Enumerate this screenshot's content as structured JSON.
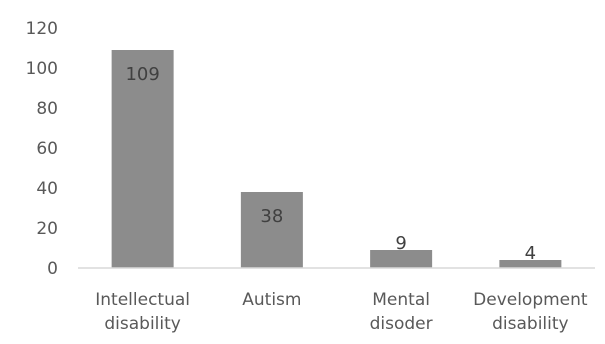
{
  "chart_data": {
    "type": "bar",
    "title": "",
    "xlabel": "",
    "ylabel": "",
    "categories": [
      [
        "Intellectual",
        "disability"
      ],
      [
        "Autism"
      ],
      [
        "Mental",
        "disoder"
      ],
      [
        "Development",
        "disability"
      ]
    ],
    "values": [
      109,
      38,
      9,
      4
    ],
    "data_labels": [
      "109",
      "38",
      "9",
      "4"
    ],
    "ylim": [
      0,
      120
    ],
    "yticks": [
      0,
      20,
      40,
      60,
      80,
      100,
      120
    ],
    "grid": false,
    "legend": "none",
    "colors": {
      "bar": "#8c8c8c",
      "axis": "#d9d9d9",
      "text": "#595959",
      "data_label": "#404040"
    }
  }
}
